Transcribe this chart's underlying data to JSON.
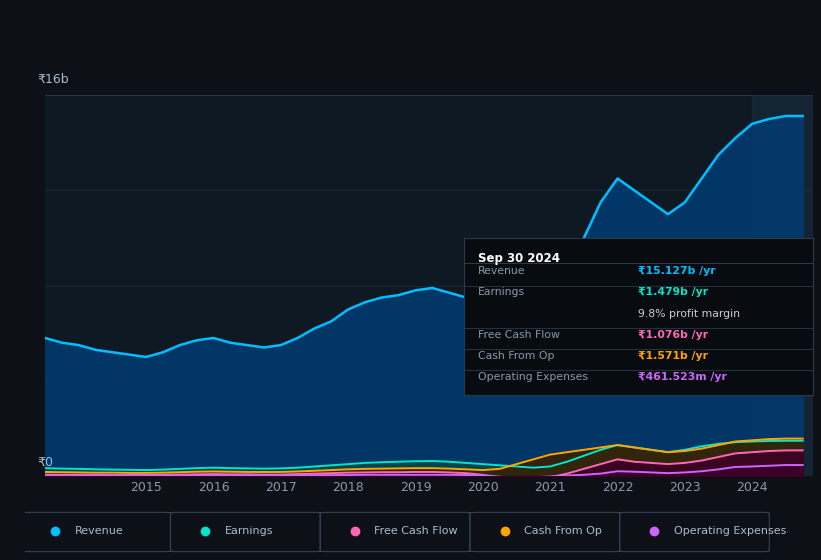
{
  "bg_color": "#0d1117",
  "plot_bg_color": "#0f1923",
  "ytick_label": "₹16b",
  "y0_label": "₹0",
  "series": {
    "revenue": {
      "color": "#00bfff",
      "fill_color": "#003a6e",
      "label": "Revenue"
    },
    "earnings": {
      "color": "#00e5cc",
      "fill_color": "#004a4a",
      "label": "Earnings"
    },
    "fcf": {
      "color": "#ff69b4",
      "fill_color": "#3d0025",
      "label": "Free Cash Flow"
    },
    "cashop": {
      "color": "#ffa500",
      "fill_color": "#3a2000",
      "label": "Cash From Op"
    },
    "opex": {
      "color": "#cc66ff",
      "fill_color": "#2a0040",
      "label": "Operating Expenses"
    }
  },
  "x_years": [
    2013.0,
    2013.25,
    2013.5,
    2013.75,
    2014.0,
    2014.25,
    2014.5,
    2014.75,
    2015.0,
    2015.25,
    2015.5,
    2015.75,
    2016.0,
    2016.25,
    2016.5,
    2016.75,
    2017.0,
    2017.25,
    2017.5,
    2017.75,
    2018.0,
    2018.25,
    2018.5,
    2018.75,
    2019.0,
    2019.25,
    2019.5,
    2019.75,
    2020.0,
    2020.25,
    2020.5,
    2020.75,
    2021.0,
    2021.25,
    2021.5,
    2021.75,
    2022.0,
    2022.25,
    2022.5,
    2022.75,
    2023.0,
    2023.25,
    2023.5,
    2023.75,
    2024.0,
    2024.25,
    2024.5,
    2024.75
  ],
  "revenue_vals": [
    5.5,
    5.7,
    5.8,
    5.6,
    5.5,
    5.3,
    5.2,
    5.1,
    5.0,
    5.2,
    5.5,
    5.7,
    5.8,
    5.6,
    5.5,
    5.4,
    5.5,
    5.8,
    6.2,
    6.5,
    7.0,
    7.3,
    7.5,
    7.6,
    7.8,
    7.9,
    7.7,
    7.5,
    7.2,
    6.8,
    6.5,
    6.2,
    7.0,
    8.5,
    10.0,
    11.5,
    12.5,
    12.0,
    11.5,
    11.0,
    11.5,
    12.5,
    13.5,
    14.2,
    14.8,
    15.0,
    15.127,
    15.127
  ],
  "earnings_vals": [
    0.3,
    0.32,
    0.33,
    0.31,
    0.3,
    0.28,
    0.27,
    0.26,
    0.25,
    0.27,
    0.3,
    0.33,
    0.35,
    0.33,
    0.32,
    0.31,
    0.32,
    0.35,
    0.4,
    0.45,
    0.5,
    0.55,
    0.58,
    0.6,
    0.62,
    0.63,
    0.6,
    0.55,
    0.5,
    0.45,
    0.4,
    0.35,
    0.4,
    0.6,
    0.85,
    1.1,
    1.3,
    1.2,
    1.1,
    1.0,
    1.1,
    1.25,
    1.35,
    1.42,
    1.45,
    1.47,
    1.479,
    1.479
  ],
  "fcf_vals": [
    0.05,
    0.05,
    0.06,
    0.05,
    0.05,
    0.05,
    0.04,
    0.04,
    0.04,
    0.05,
    0.06,
    0.07,
    0.08,
    0.07,
    0.07,
    0.06,
    0.06,
    0.08,
    0.1,
    0.12,
    0.14,
    0.15,
    0.16,
    0.16,
    0.17,
    0.17,
    0.15,
    0.12,
    0.05,
    -0.1,
    -0.2,
    -0.15,
    -0.05,
    0.1,
    0.3,
    0.5,
    0.7,
    0.6,
    0.55,
    0.5,
    0.55,
    0.65,
    0.8,
    0.95,
    1.0,
    1.05,
    1.076,
    1.076
  ],
  "cashop_vals": [
    0.15,
    0.16,
    0.17,
    0.16,
    0.15,
    0.14,
    0.14,
    0.13,
    0.13,
    0.14,
    0.16,
    0.18,
    0.19,
    0.18,
    0.17,
    0.17,
    0.17,
    0.19,
    0.22,
    0.25,
    0.28,
    0.3,
    0.31,
    0.32,
    0.33,
    0.33,
    0.31,
    0.28,
    0.25,
    0.3,
    0.5,
    0.7,
    0.9,
    1.0,
    1.1,
    1.2,
    1.3,
    1.2,
    1.1,
    1.0,
    1.05,
    1.15,
    1.3,
    1.45,
    1.5,
    1.55,
    1.571,
    1.571
  ],
  "opex_vals": [
    0.02,
    0.02,
    0.02,
    0.02,
    0.02,
    0.02,
    0.02,
    0.02,
    0.02,
    0.02,
    0.02,
    0.03,
    0.03,
    0.03,
    0.03,
    0.03,
    0.03,
    0.03,
    0.04,
    0.04,
    0.04,
    0.05,
    0.05,
    0.05,
    0.05,
    0.05,
    0.05,
    0.04,
    0.04,
    -0.03,
    -0.08,
    -0.05,
    -0.02,
    0.02,
    0.05,
    0.1,
    0.2,
    0.18,
    0.15,
    0.12,
    0.15,
    0.2,
    0.28,
    0.38,
    0.4,
    0.43,
    0.4615,
    0.4615
  ],
  "xticks": [
    2015,
    2016,
    2017,
    2018,
    2019,
    2020,
    2021,
    2022,
    2023,
    2024
  ],
  "ylim": [
    0,
    16
  ],
  "xlim": [
    2013.5,
    2024.9
  ],
  "info_box": {
    "date": "Sep 30 2024",
    "rows": [
      {
        "label": "Revenue",
        "value": "₹15.127b /yr",
        "value_color": "#00bfff",
        "sep_after": true
      },
      {
        "label": "Earnings",
        "value": "₹1.479b /yr",
        "value_color": "#00e5cc",
        "sep_after": false
      },
      {
        "label": "",
        "value": "9.8% profit margin",
        "value_color": "#cccccc",
        "sep_after": true
      },
      {
        "label": "Free Cash Flow",
        "value": "₹1.076b /yr",
        "value_color": "#ff69b4",
        "sep_after": true
      },
      {
        "label": "Cash From Op",
        "value": "₹1.571b /yr",
        "value_color": "#ffa500",
        "sep_after": true
      },
      {
        "label": "Operating Expenses",
        "value": "₹461.523m /yr",
        "value_color": "#cc66ff",
        "sep_after": false
      }
    ]
  },
  "legend_items": [
    {
      "label": "Revenue",
      "color": "#00bfff"
    },
    {
      "label": "Earnings",
      "color": "#00e5cc"
    },
    {
      "label": "Free Cash Flow",
      "color": "#ff69b4"
    },
    {
      "label": "Cash From Op",
      "color": "#ffa500"
    },
    {
      "label": "Operating Expenses",
      "color": "#cc66ff"
    }
  ]
}
